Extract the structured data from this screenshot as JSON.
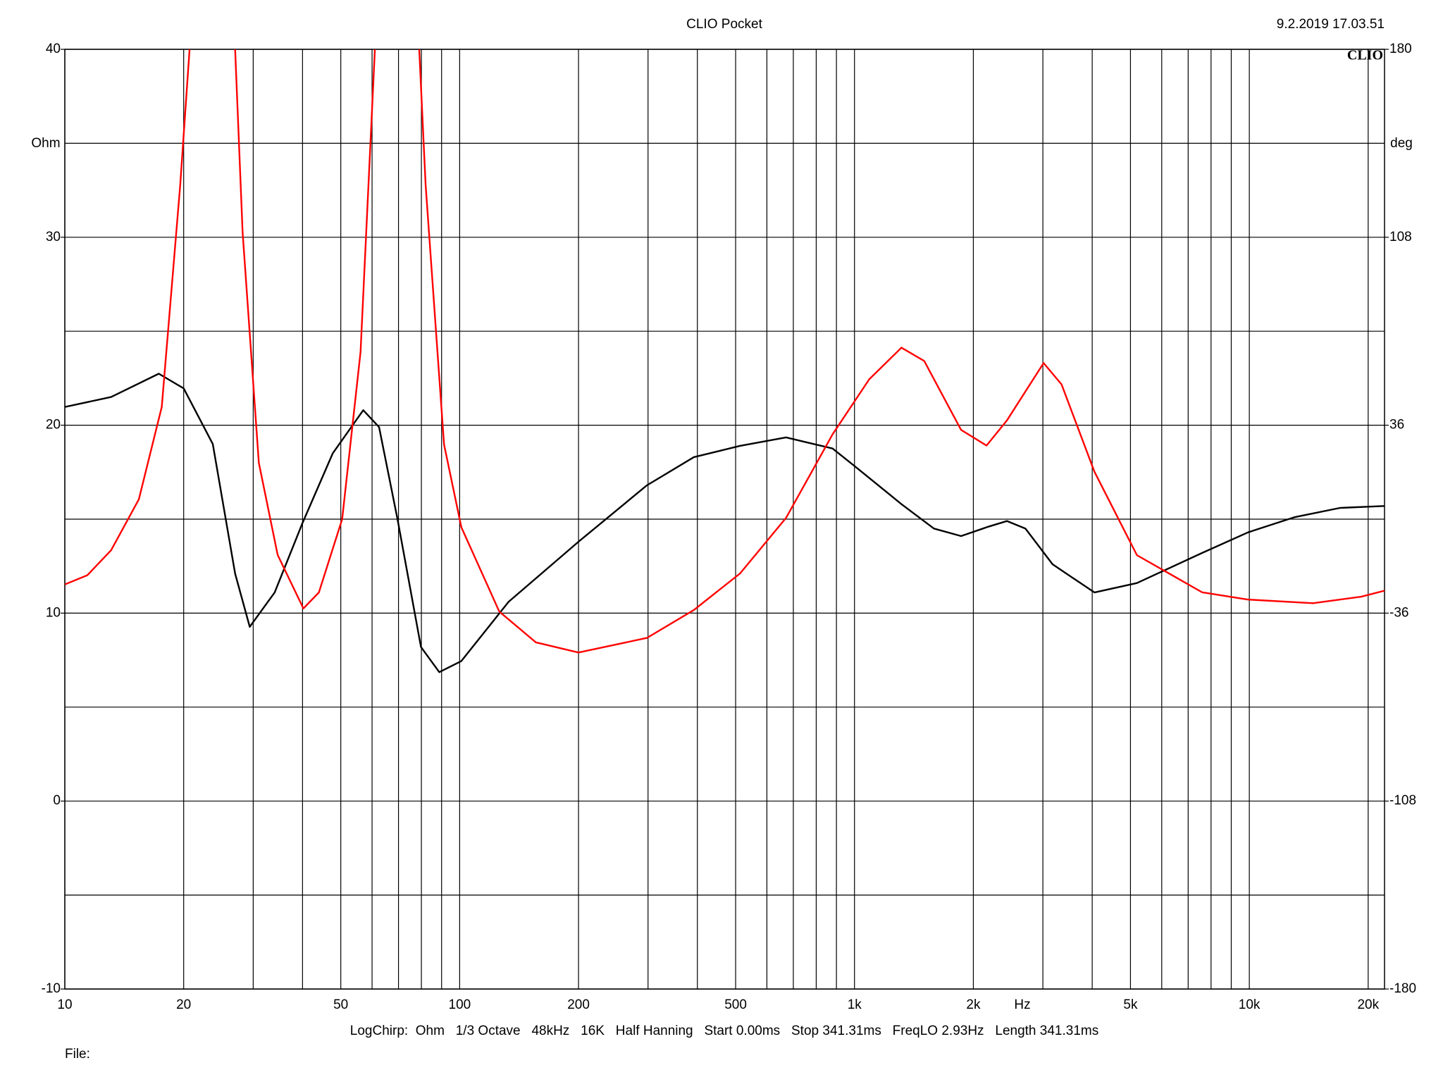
{
  "chart_data": {
    "type": "line",
    "title": "CLIO Pocket",
    "timestamp": "9.2.2019 17.03.51",
    "logo": "CLIO",
    "x_label": "Hz",
    "y_label": "Ohm",
    "y2_label": "deg",
    "footer": "LogChirp:  Ohm   1/3 Octave   48kHz   16K   Half Hanning   Start 0.00ms   Stop 341.31ms   FreqLO 2.93Hz   Length 341.31ms",
    "file_label": "File:",
    "xscale": "log",
    "grid": true,
    "xlim": [
      10,
      22000
    ],
    "xticks": [
      10,
      20,
      50,
      100,
      200,
      500,
      {
        "value": 1000,
        "label": "1k"
      },
      {
        "value": 2000,
        "label": "2k"
      },
      {
        "value": 5000,
        "label": "5k"
      },
      {
        "value": 10000,
        "label": "10k"
      },
      {
        "value": 20000,
        "label": "20k"
      }
    ],
    "xgrid_minor": [
      30,
      40,
      60,
      70,
      80,
      90,
      300,
      400,
      600,
      700,
      800,
      900,
      3000,
      4000,
      6000,
      7000,
      8000,
      9000
    ],
    "ylim": [
      -10,
      40
    ],
    "yticks": [
      -10,
      0,
      10,
      20,
      30,
      40
    ],
    "ygrid_minor": [
      -5,
      5,
      15,
      25,
      35
    ],
    "y2lim": [
      -180,
      180
    ],
    "y2ticks": [
      -180,
      -108,
      -36,
      36,
      108,
      180
    ],
    "series": [
      {
        "color": "#000000",
        "axis": "y",
        "x": [
          10,
          13.1,
          17.3,
          20,
          23.7,
          27,
          29.4,
          34,
          40,
          47.7,
          57,
          62.5,
          69.6,
          79.8,
          88.8,
          101,
          133,
          200,
          298,
          392,
          513,
          671,
          880,
          1004,
          1315,
          1589,
          1862,
          2183,
          2432,
          2710,
          3174,
          4052,
          5192,
          7590,
          9930,
          12990,
          16980,
          22000
        ],
        "values": [
          20.97,
          21.5,
          22.74,
          21.96,
          19.0,
          12.1,
          9.27,
          11.1,
          14.8,
          18.5,
          20.8,
          19.9,
          15.0,
          8.2,
          6.86,
          7.45,
          10.6,
          13.8,
          16.8,
          18.3,
          18.9,
          19.35,
          18.76,
          17.8,
          15.8,
          14.5,
          14.1,
          14.6,
          14.9,
          14.5,
          12.6,
          11.1,
          11.6,
          13.2,
          14.3,
          15.1,
          15.6,
          15.7
        ]
      },
      {
        "color": "#ff0000",
        "axis": "y2",
        "x": [
          10,
          11.4,
          13.1,
          15.4,
          17.6,
          19.6,
          20.7,
          24,
          27,
          28.2,
          31,
          34.6,
          40.2,
          44,
          50.4,
          56.1,
          61,
          70,
          79,
          82,
          91.3,
          101,
          126,
          156,
          200,
          298,
          392,
          513,
          671,
          880,
          1090,
          1315,
          1502,
          1862,
          2160,
          2432,
          3013,
          3346,
          4052,
          5192,
          7590,
          9930,
          14500,
          19200,
          22000
        ],
        "values": [
          -25.0,
          -21.5,
          -11.9,
          7.6,
          43,
          128,
          180,
          null,
          180,
          110,
          21.6,
          -13.7,
          -34.2,
          -28.1,
          0,
          64,
          180,
          null,
          180,
          128,
          28.6,
          -3.1,
          -35.4,
          -47.2,
          -51.1,
          -45.5,
          -34.8,
          -20.8,
          0.5,
          32.5,
          53.6,
          65.7,
          60.6,
          34.2,
          28.2,
          37.8,
          59.8,
          51.6,
          18.2,
          -13.8,
          -28.0,
          -30.8,
          -32.2,
          -29.7,
          -27.4
        ]
      }
    ]
  }
}
